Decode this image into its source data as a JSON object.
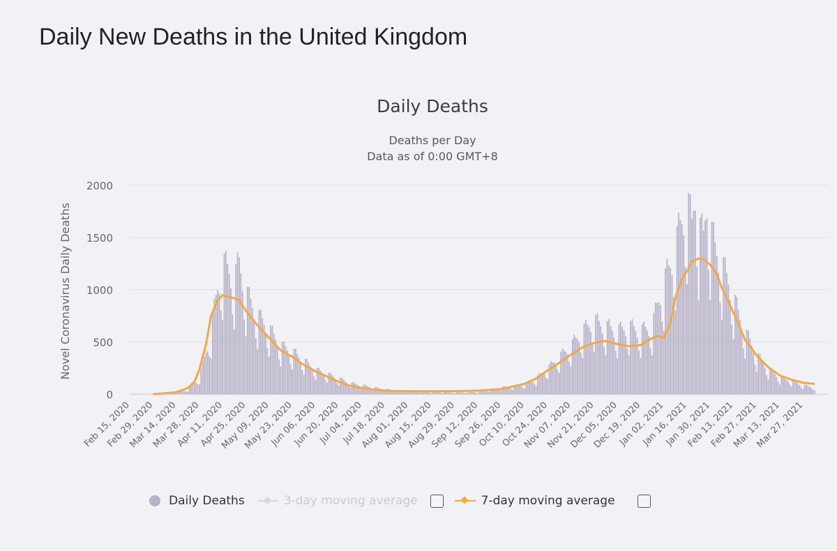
{
  "page": {
    "heading": "Daily New Deaths in the United Kingdom"
  },
  "chart": {
    "title": "Daily Deaths",
    "subtitle_line1": "Deaths per Day",
    "subtitle_line2": "Data as of 0:00 GMT+8",
    "ylabel": "Novel Coronavirus Daily Deaths"
  },
  "legend": {
    "daily_label": "Daily Deaths",
    "ma3_label": "3-day moving average",
    "ma7_label": "7-day moving average"
  },
  "colors": {
    "bars": "#b8b2c8",
    "ma7": "#f3a845",
    "ma3": "#d6d6dc",
    "grid": "#dedfe6"
  },
  "chart_data": {
    "type": "bar",
    "title": "Daily Deaths",
    "subtitle": [
      "Deaths per Day",
      "Data as of 0:00 GMT+8"
    ],
    "xlabel": "",
    "ylabel": "Novel Coronavirus Daily Deaths",
    "ylim": [
      0,
      2000
    ],
    "yticks": [
      0,
      500,
      1000,
      1500,
      2000
    ],
    "grid": true,
    "legend_position": "bottom",
    "x_start": "2020-02-15",
    "x_end": "2021-04-03",
    "xticks": [
      "Feb 15, 2020",
      "Feb 29, 2020",
      "Mar 14, 2020",
      "Mar 28, 2020",
      "Apr 11, 2020",
      "Apr 25, 2020",
      "May 09, 2020",
      "May 23, 2020",
      "Jun 06, 2020",
      "Jun 20, 2020",
      "Jul 04, 2020",
      "Jul 18, 2020",
      "Aug 01, 2020",
      "Aug 15, 2020",
      "Aug 29, 2020",
      "Sep 12, 2020",
      "Sep 26, 2020",
      "Oct 10, 2020",
      "Oct 24, 2020",
      "Nov 07, 2020",
      "Nov 21, 2020",
      "Dec 05, 2020",
      "Dec 19, 2020",
      "Jan 02, 2021",
      "Jan 16, 2021",
      "Jan 30, 2021",
      "Feb 13, 2021",
      "Feb 27, 2021",
      "Mar 13, 2021",
      "Mar 27, 2021"
    ],
    "series": [
      {
        "name": "Daily Deaths",
        "kind": "bar",
        "dates": [
          "2020-02-29",
          "2020-03-07",
          "2020-03-14",
          "2020-03-21",
          "2020-03-28",
          "2020-04-04",
          "2020-04-08",
          "2020-04-11",
          "2020-04-15",
          "2020-04-18",
          "2020-04-21",
          "2020-04-25",
          "2020-05-02",
          "2020-05-09",
          "2020-05-16",
          "2020-05-23",
          "2020-05-30",
          "2020-06-06",
          "2020-06-13",
          "2020-06-20",
          "2020-06-27",
          "2020-07-04",
          "2020-07-11",
          "2020-07-18",
          "2020-07-25",
          "2020-08-01",
          "2020-08-08",
          "2020-08-15",
          "2020-08-22",
          "2020-08-29",
          "2020-09-05",
          "2020-09-12",
          "2020-09-19",
          "2020-09-26",
          "2020-10-03",
          "2020-10-10",
          "2020-10-17",
          "2020-10-24",
          "2020-10-31",
          "2020-11-07",
          "2020-11-14",
          "2020-11-21",
          "2020-11-28",
          "2020-12-05",
          "2020-12-12",
          "2020-12-19",
          "2020-12-26",
          "2020-12-31",
          "2021-01-05",
          "2021-01-09",
          "2021-01-13",
          "2021-01-16",
          "2021-01-19",
          "2021-01-21",
          "2021-01-23",
          "2021-01-26",
          "2021-01-28",
          "2021-01-30",
          "2021-02-02",
          "2021-02-06",
          "2021-02-10",
          "2021-02-13",
          "2021-02-17",
          "2021-02-20",
          "2021-02-24",
          "2021-02-27",
          "2021-03-06",
          "2021-03-13",
          "2021-03-20",
          "2021-03-27",
          "2021-04-03"
        ],
        "values": [
          2,
          5,
          15,
          40,
          150,
          550,
          950,
          1150,
          1100,
          1000,
          1170,
          900,
          700,
          580,
          430,
          380,
          300,
          220,
          180,
          140,
          100,
          80,
          60,
          45,
          30,
          30,
          25,
          20,
          18,
          15,
          18,
          20,
          40,
          60,
          70,
          90,
          140,
          230,
          330,
          430,
          560,
          650,
          600,
          560,
          600,
          560,
          600,
          900,
          1100,
          1300,
          1550,
          1700,
          1500,
          1850,
          1450,
          1400,
          1770,
          1450,
          1300,
          1150,
          1000,
          850,
          680,
          550,
          450,
          350,
          230,
          150,
          120,
          80,
          60
        ]
      },
      {
        "name": "3-day moving average",
        "kind": "line",
        "visible": false,
        "dates": [],
        "values": []
      },
      {
        "name": "7-day moving average",
        "kind": "line",
        "dates": [
          "2020-02-29",
          "2020-03-07",
          "2020-03-14",
          "2020-03-21",
          "2020-03-25",
          "2020-03-28",
          "2020-04-01",
          "2020-04-04",
          "2020-04-08",
          "2020-04-11",
          "2020-04-15",
          "2020-04-18",
          "2020-04-21",
          "2020-04-25",
          "2020-04-29",
          "2020-05-02",
          "2020-05-09",
          "2020-05-16",
          "2020-05-23",
          "2020-05-30",
          "2020-06-06",
          "2020-06-13",
          "2020-06-20",
          "2020-06-27",
          "2020-07-04",
          "2020-07-11",
          "2020-07-18",
          "2020-07-25",
          "2020-08-01",
          "2020-08-15",
          "2020-08-29",
          "2020-09-12",
          "2020-09-26",
          "2020-10-03",
          "2020-10-10",
          "2020-10-17",
          "2020-10-24",
          "2020-10-31",
          "2020-11-07",
          "2020-11-14",
          "2020-11-21",
          "2020-11-28",
          "2020-12-05",
          "2020-12-12",
          "2020-12-19",
          "2020-12-24",
          "2020-12-29",
          "2021-01-02",
          "2021-01-06",
          "2021-01-09",
          "2021-01-13",
          "2021-01-16",
          "2021-01-19",
          "2021-01-23",
          "2021-01-26",
          "2021-01-30",
          "2021-02-03",
          "2021-02-06",
          "2021-02-10",
          "2021-02-13",
          "2021-02-17",
          "2021-02-20",
          "2021-02-24",
          "2021-02-27",
          "2021-03-06",
          "2021-03-13",
          "2021-03-20",
          "2021-03-27",
          "2021-04-03"
        ],
        "values": [
          2,
          8,
          20,
          60,
          120,
          240,
          480,
          750,
          900,
          950,
          930,
          920,
          900,
          800,
          720,
          660,
          540,
          420,
          360,
          280,
          220,
          170,
          120,
          80,
          60,
          45,
          35,
          30,
          30,
          28,
          30,
          35,
          50,
          75,
          100,
          150,
          230,
          300,
          380,
          450,
          490,
          510,
          480,
          460,
          470,
          520,
          560,
          540,
          680,
          930,
          1100,
          1180,
          1270,
          1300,
          1290,
          1240,
          1150,
          1020,
          890,
          780,
          640,
          520,
          440,
          370,
          260,
          180,
          140,
          110,
          100
        ]
      }
    ]
  }
}
